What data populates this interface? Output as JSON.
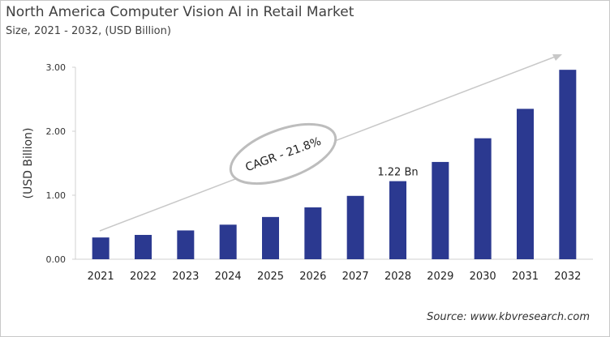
{
  "chart_data": {
    "type": "bar",
    "title": "North America Computer Vision AI in Retail Market",
    "subtitle": "Size, 2021 - 2032, (USD Billion)",
    "ylabel": "(USD Billion)",
    "xlabel": "",
    "categories": [
      "2021",
      "2022",
      "2023",
      "2024",
      "2025",
      "2026",
      "2027",
      "2028",
      "2029",
      "2030",
      "2031",
      "2032"
    ],
    "values": [
      0.34,
      0.38,
      0.45,
      0.54,
      0.66,
      0.81,
      0.99,
      1.22,
      1.52,
      1.89,
      2.35,
      2.96
    ],
    "ylim": [
      0,
      3
    ],
    "yticks": [
      "0.00",
      "1.00",
      "2.00",
      "3.00"
    ],
    "data_label": {
      "category": "2028",
      "text": "1.22 Bn"
    },
    "annotation": "CAGR - 21.8%",
    "bar_color": "#2b3990",
    "grid": false,
    "source": "Source: www.kbvresearch.com"
  }
}
